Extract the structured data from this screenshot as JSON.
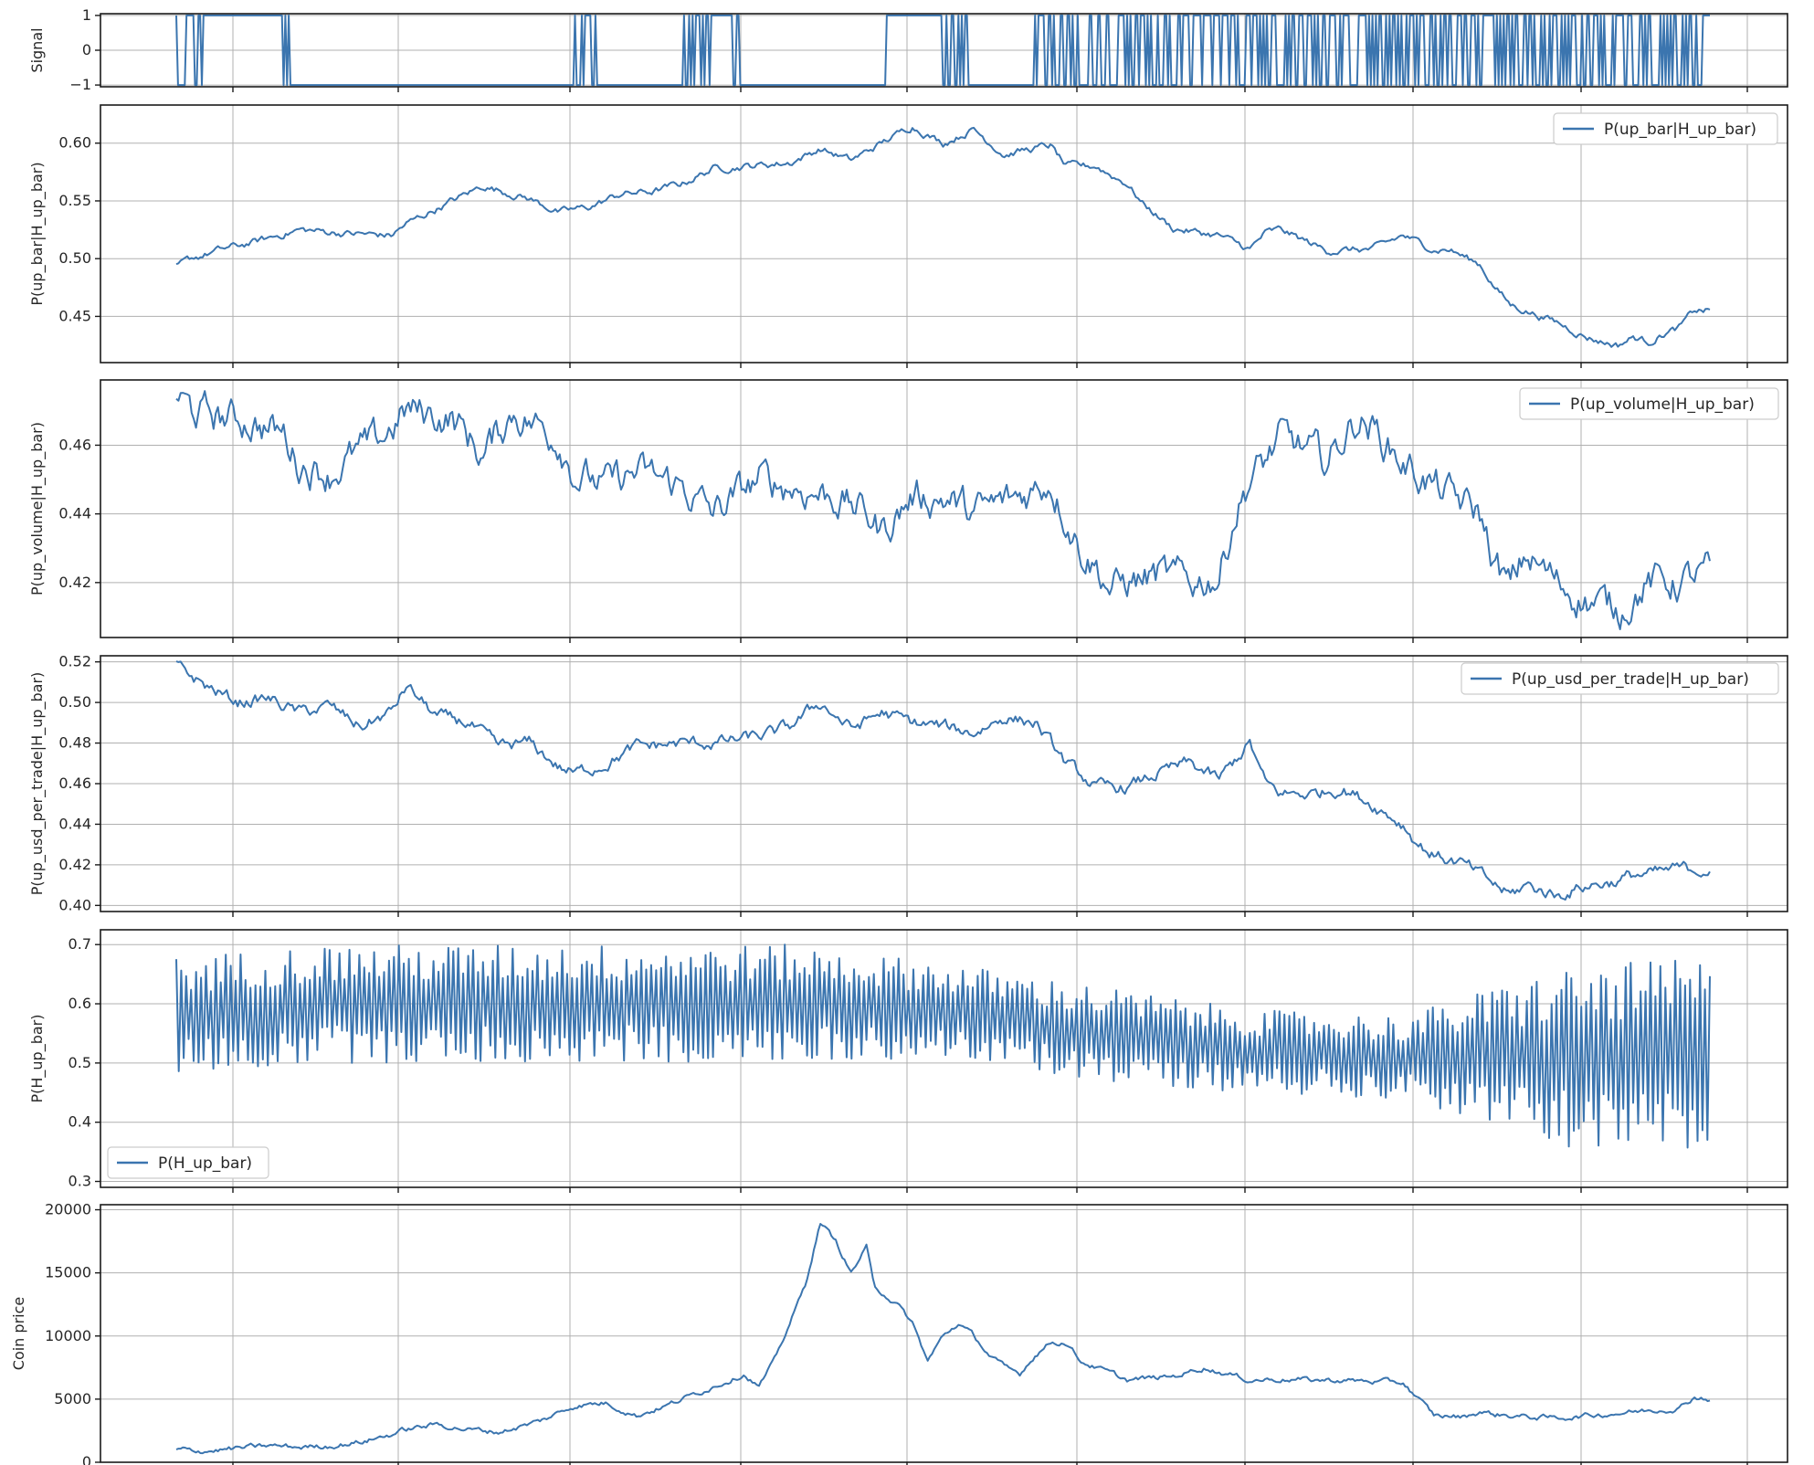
{
  "chart_data": [
    {
      "type": "line",
      "ylabel": "Signal",
      "ylim": [
        -1.05,
        1.05
      ],
      "yticks": [
        1,
        0,
        -1
      ],
      "ytick_labels": [
        "1",
        "0",
        "−1"
      ],
      "legend": null,
      "grid": true,
      "series": [
        {
          "kind": "signal"
        }
      ]
    },
    {
      "type": "line",
      "ylabel": "P(up_bar|H_up_bar)",
      "ylim": [
        0.41,
        0.633
      ],
      "yticks": [
        0.6,
        0.55,
        0.5,
        0.45
      ],
      "ytick_labels": [
        "0.60",
        "0.55",
        "0.50",
        "0.45"
      ],
      "legend": "top-right",
      "grid": true,
      "noise": 0.003,
      "series": [
        {
          "name": "P(up_bar|H_up_bar)",
          "x": [
            0,
            0.01,
            0.03,
            0.05,
            0.08,
            0.11,
            0.14,
            0.15,
            0.18,
            0.2,
            0.23,
            0.25,
            0.27,
            0.29,
            0.31,
            0.33,
            0.35,
            0.37,
            0.4,
            0.42,
            0.44,
            0.46,
            0.48,
            0.5,
            0.52,
            0.54,
            0.55,
            0.57,
            0.58,
            0.6,
            0.61,
            0.62,
            0.63,
            0.65,
            0.68,
            0.7,
            0.71,
            0.72,
            0.75,
            0.78,
            0.8,
            0.82,
            0.83,
            0.85,
            0.86,
            0.87,
            0.88,
            0.9,
            0.92,
            0.93,
            0.94,
            0.95,
            0.96,
            0.97,
            0.98,
            0.99,
            1
          ],
          "values": [
            0.493,
            0.5,
            0.508,
            0.514,
            0.525,
            0.522,
            0.52,
            0.53,
            0.55,
            0.563,
            0.552,
            0.54,
            0.545,
            0.556,
            0.558,
            0.565,
            0.578,
            0.58,
            0.583,
            0.595,
            0.585,
            0.6,
            0.615,
            0.6,
            0.612,
            0.59,
            0.593,
            0.598,
            0.58,
            0.58,
            0.572,
            0.565,
            0.548,
            0.526,
            0.52,
            0.508,
            0.522,
            0.525,
            0.507,
            0.508,
            0.52,
            0.508,
            0.508,
            0.495,
            0.475,
            0.46,
            0.455,
            0.445,
            0.432,
            0.428,
            0.425,
            0.432,
            0.428,
            0.435,
            0.44,
            0.455,
            0.455
          ]
        }
      ]
    },
    {
      "type": "line",
      "ylabel": "P(up_volume|H_up_bar)",
      "ylim": [
        0.404,
        0.479
      ],
      "yticks": [
        0.46,
        0.44,
        0.42
      ],
      "ytick_labels": [
        "0.46",
        "0.44",
        "0.42"
      ],
      "legend": "top-right",
      "grid": true,
      "noise": 0.005,
      "series": [
        {
          "name": "P(up_volume|H_up_bar)",
          "x": [
            0,
            0.01,
            0.03,
            0.05,
            0.07,
            0.08,
            0.1,
            0.12,
            0.13,
            0.15,
            0.18,
            0.2,
            0.22,
            0.25,
            0.26,
            0.28,
            0.3,
            0.33,
            0.35,
            0.38,
            0.4,
            0.43,
            0.45,
            0.46,
            0.48,
            0.5,
            0.52,
            0.55,
            0.57,
            0.58,
            0.59,
            0.6,
            0.61,
            0.62,
            0.64,
            0.66,
            0.68,
            0.69,
            0.7,
            0.71,
            0.72,
            0.73,
            0.75,
            0.77,
            0.78,
            0.8,
            0.82,
            0.83,
            0.85,
            0.86,
            0.87,
            0.88,
            0.9,
            0.92,
            0.94,
            0.96,
            0.98,
            1
          ],
          "values": [
            0.475,
            0.47,
            0.468,
            0.467,
            0.463,
            0.455,
            0.452,
            0.458,
            0.46,
            0.47,
            0.468,
            0.457,
            0.47,
            0.462,
            0.452,
            0.448,
            0.452,
            0.448,
            0.44,
            0.45,
            0.448,
            0.445,
            0.44,
            0.435,
            0.445,
            0.445,
            0.44,
            0.445,
            0.45,
            0.44,
            0.43,
            0.425,
            0.418,
            0.42,
            0.422,
            0.42,
            0.422,
            0.44,
            0.45,
            0.455,
            0.462,
            0.46,
            0.455,
            0.468,
            0.465,
            0.455,
            0.448,
            0.445,
            0.44,
            0.425,
            0.418,
            0.428,
            0.42,
            0.415,
            0.412,
            0.42,
            0.42,
            0.423
          ]
        }
      ]
    },
    {
      "type": "line",
      "ylabel": "P(up_usd_per_trade|H_up_bar)",
      "ylim": [
        0.397,
        0.523
      ],
      "yticks": [
        0.52,
        0.5,
        0.48,
        0.46,
        0.44,
        0.42,
        0.4
      ],
      "ytick_labels": [
        "0.52",
        "0.50",
        "0.48",
        "0.46",
        "0.44",
        "0.42",
        "0.40"
      ],
      "legend": "top-right",
      "grid": true,
      "noise": 0.003,
      "series": [
        {
          "name": "P(up_usd_per_trade|H_up_bar)",
          "x": [
            0,
            0.02,
            0.04,
            0.06,
            0.08,
            0.1,
            0.12,
            0.14,
            0.15,
            0.17,
            0.19,
            0.21,
            0.23,
            0.25,
            0.26,
            0.28,
            0.3,
            0.33,
            0.35,
            0.37,
            0.39,
            0.4,
            0.42,
            0.44,
            0.46,
            0.48,
            0.5,
            0.52,
            0.54,
            0.56,
            0.58,
            0.6,
            0.62,
            0.64,
            0.66,
            0.68,
            0.7,
            0.71,
            0.72,
            0.74,
            0.76,
            0.78,
            0.8,
            0.81,
            0.82,
            0.84,
            0.86,
            0.87,
            0.88,
            0.9,
            0.92,
            0.94,
            0.95,
            0.96,
            0.98,
            1
          ],
          "values": [
            0.518,
            0.508,
            0.5,
            0.502,
            0.495,
            0.498,
            0.488,
            0.495,
            0.508,
            0.493,
            0.49,
            0.478,
            0.48,
            0.468,
            0.465,
            0.47,
            0.478,
            0.48,
            0.48,
            0.482,
            0.485,
            0.488,
            0.5,
            0.487,
            0.495,
            0.49,
            0.488,
            0.485,
            0.493,
            0.49,
            0.47,
            0.458,
            0.458,
            0.465,
            0.47,
            0.462,
            0.48,
            0.46,
            0.455,
            0.455,
            0.458,
            0.45,
            0.44,
            0.43,
            0.425,
            0.42,
            0.41,
            0.405,
            0.41,
            0.405,
            0.41,
            0.412,
            0.415,
            0.415,
            0.418,
            0.418
          ]
        }
      ]
    },
    {
      "type": "line",
      "ylabel": "P(H_up_bar)",
      "ylim": [
        0.29,
        0.725
      ],
      "yticks": [
        0.7,
        0.6,
        0.5,
        0.4,
        0.3
      ],
      "ytick_labels": [
        "0.7",
        "0.6",
        "0.5",
        "0.4",
        "0.3"
      ],
      "legend": "bottom-left",
      "grid": true,
      "series": [
        {
          "name": "P(H_up_bar)",
          "center_x": [
            0,
            0.1,
            0.2,
            0.3,
            0.4,
            0.5,
            0.6,
            0.7,
            0.8,
            0.9,
            1
          ],
          "center_y": [
            0.58,
            0.6,
            0.6,
            0.6,
            0.6,
            0.59,
            0.55,
            0.52,
            0.51,
            0.51,
            0.51
          ],
          "halfwidth_x": [
            0,
            0.1,
            0.2,
            0.3,
            0.4,
            0.5,
            0.6,
            0.7,
            0.8,
            0.9,
            1
          ],
          "halfwidth_y": [
            0.1,
            0.1,
            0.1,
            0.1,
            0.1,
            0.08,
            0.08,
            0.07,
            0.07,
            0.15,
            0.17
          ]
        }
      ]
    },
    {
      "type": "line",
      "ylabel": "Coin price",
      "ylim": [
        0,
        20400
      ],
      "yticks": [
        20000,
        15000,
        10000,
        5000,
        0
      ],
      "ytick_labels": [
        "20000",
        "15000",
        "10000",
        "5000",
        "0"
      ],
      "legend": null,
      "grid": true,
      "noise": 200,
      "series": [
        {
          "name": "Coin price",
          "x": [
            0,
            0.02,
            0.04,
            0.06,
            0.08,
            0.1,
            0.12,
            0.14,
            0.15,
            0.17,
            0.19,
            0.21,
            0.23,
            0.24,
            0.26,
            0.28,
            0.3,
            0.32,
            0.35,
            0.37,
            0.38,
            0.39,
            0.4,
            0.41,
            0.42,
            0.43,
            0.44,
            0.45,
            0.455,
            0.46,
            0.47,
            0.48,
            0.49,
            0.5,
            0.51,
            0.52,
            0.53,
            0.54,
            0.55,
            0.56,
            0.57,
            0.58,
            0.59,
            0.6,
            0.62,
            0.65,
            0.67,
            0.7,
            0.72,
            0.74,
            0.76,
            0.78,
            0.8,
            0.82,
            0.84,
            0.85,
            0.86,
            0.87,
            0.88,
            0.9,
            0.92,
            0.94,
            0.96,
            0.98,
            0.99,
            1
          ],
          "values": [
            1000,
            900,
            1100,
            1300,
            1200,
            1300,
            1600,
            2200,
            2600,
            3000,
            2600,
            2400,
            3000,
            3400,
            4500,
            4700,
            3700,
            4500,
            6000,
            7000,
            6000,
            8000,
            11000,
            14000,
            19000,
            17500,
            15000,
            17000,
            14000,
            13500,
            12500,
            11000,
            8000,
            10000,
            11000,
            10000,
            8500,
            7500,
            7000,
            8500,
            9500,
            9500,
            8000,
            7500,
            6500,
            6800,
            7500,
            6500,
            6600,
            6500,
            6500,
            6400,
            6300,
            3700,
            3600,
            4000,
            3800,
            3700,
            3600,
            3500,
            3700,
            3900,
            4100,
            4300,
            5200,
            5000
          ]
        }
      ]
    }
  ]
}
